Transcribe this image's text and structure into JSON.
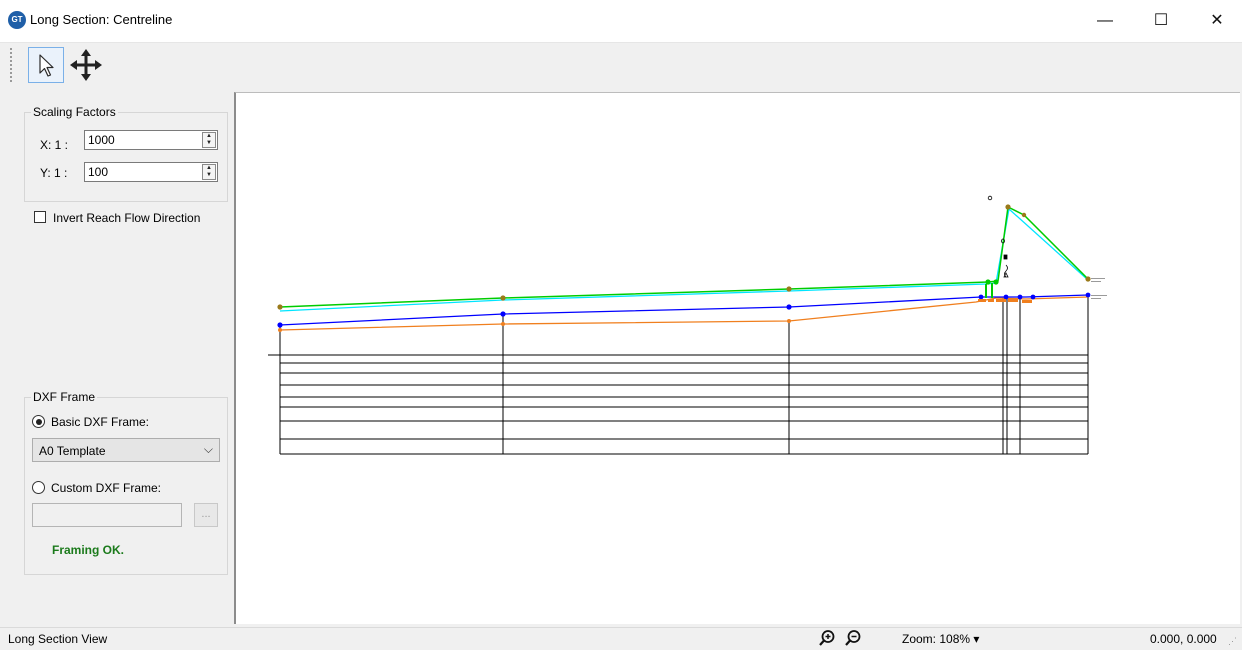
{
  "window": {
    "title": "Long Section: Centreline",
    "app_icon_text": "GT",
    "minimize": "—",
    "maximize": "☐",
    "close": "✕"
  },
  "toolbar": {
    "select_tool": "pointer-icon",
    "pan_tool": "pan-arrows-icon"
  },
  "scaling": {
    "group_label": "Scaling Factors",
    "x_label": "X: 1 :",
    "x_value": "1000",
    "y_label": "Y: 1 :",
    "y_value": "100"
  },
  "invert_flow": {
    "label": "Invert Reach Flow Direction",
    "checked": false
  },
  "dxf": {
    "group_label": "DXF Frame",
    "basic_label": "Basic DXF Frame:",
    "basic_selected": true,
    "template_value": "A0 Template",
    "custom_label": "Custom DXF Frame:",
    "custom_path": "",
    "browse_label": "...",
    "status": "Framing OK."
  },
  "statusbar": {
    "view_name": "Long Section View",
    "zoom": "Zoom: 108% ▾",
    "coords": "0.000, 0.000"
  },
  "colors": {
    "accent": "#0078d7",
    "ground_green": "#00cc00",
    "water_cyan": "#00e5ff",
    "invert_blue": "#0000ff",
    "pipe_orange": "#f07f1e",
    "status_ok": "#1b7a1b"
  }
}
